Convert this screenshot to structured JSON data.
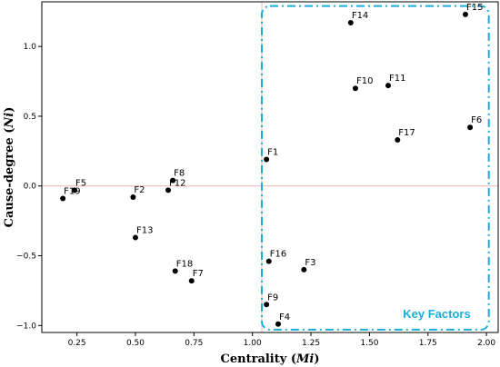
{
  "chart_data": {
    "type": "scatter",
    "xlabel_prefix": "Centrality (",
    "xlabel_var": "Mi",
    "xlabel_suffix": ")",
    "ylabel_prefix": "Cause-degree (",
    "ylabel_var": "Ni",
    "ylabel_suffix": ")",
    "xlim": [
      0.1,
      2.05
    ],
    "ylim": [
      -1.05,
      1.32
    ],
    "xticks": [
      0.25,
      0.5,
      0.75,
      1.0,
      1.25,
      1.5,
      1.75,
      2.0
    ],
    "xtick_labels": [
      "0.25",
      "0.50",
      "0.75",
      "1.00",
      "1.25",
      "1.50",
      "1.75",
      "2.00"
    ],
    "yticks": [
      1.0,
      0.5,
      0.0,
      -0.5,
      -1.0
    ],
    "ytick_labels": [
      "1.0",
      "0.5",
      "0.0",
      "−0.5",
      "−1.0"
    ],
    "reference_lines": {
      "x": 1.04,
      "y": 0.0,
      "color": "#f4b9b0"
    },
    "point_color": "#000000",
    "points": [
      {
        "label": "F1",
        "x": 1.06,
        "y": 0.19
      },
      {
        "label": "F2",
        "x": 0.49,
        "y": -0.08
      },
      {
        "label": "F3",
        "x": 1.22,
        "y": -0.6
      },
      {
        "label": "F4",
        "x": 1.11,
        "y": -0.99
      },
      {
        "label": "F5",
        "x": 0.24,
        "y": -0.03
      },
      {
        "label": "F6",
        "x": 1.93,
        "y": 0.42
      },
      {
        "label": "F7",
        "x": 0.74,
        "y": -0.68
      },
      {
        "label": "F8",
        "x": 0.66,
        "y": 0.04
      },
      {
        "label": "F9",
        "x": 1.06,
        "y": -0.85
      },
      {
        "label": "F10",
        "x": 1.44,
        "y": 0.7
      },
      {
        "label": "F11",
        "x": 1.58,
        "y": 0.72
      },
      {
        "label": "F12",
        "x": 0.64,
        "y": -0.03
      },
      {
        "label": "F13",
        "x": 0.5,
        "y": -0.37
      },
      {
        "label": "F14",
        "x": 1.42,
        "y": 1.17
      },
      {
        "label": "F15",
        "x": 1.91,
        "y": 1.23
      },
      {
        "label": "F16",
        "x": 1.07,
        "y": -0.54
      },
      {
        "label": "F17",
        "x": 1.62,
        "y": 0.33
      },
      {
        "label": "F18",
        "x": 0.67,
        "y": -0.61
      },
      {
        "label": "F19",
        "x": 0.19,
        "y": -0.09
      }
    ],
    "key_region": {
      "label": "Key Factors",
      "color": "#1aaed8",
      "x_range": [
        1.04,
        2.01
      ],
      "y_range": [
        -1.03,
        1.29
      ]
    }
  }
}
